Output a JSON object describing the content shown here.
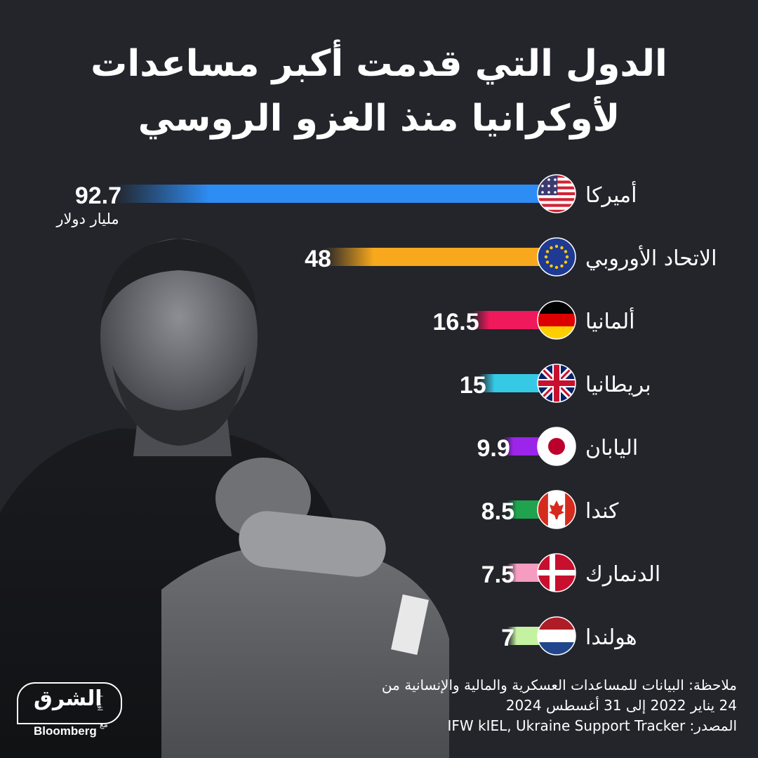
{
  "title_line1": "الدول التي قدمت أكبر مساعدات",
  "title_line2": "لأوكرانيا منذ الغزو الروسي",
  "unit_label": "مليار دولار",
  "chart_data": {
    "type": "bar",
    "orientation": "horizontal",
    "categories": [
      "أميركا",
      "الاتحاد الأوروبي",
      "ألمانيا",
      "بريطانيا",
      "اليابان",
      "كندا",
      "الدنمارك",
      "هولندا"
    ],
    "values": [
      92.7,
      48,
      16.5,
      15,
      9.9,
      8.5,
      7.5,
      7
    ],
    "value_labels": [
      "92.7",
      "48",
      "16.5",
      "15",
      "9.9",
      "8.5",
      "7.5",
      "7"
    ],
    "flags": [
      "usa-flag-icon",
      "eu-flag-icon",
      "germany-flag-icon",
      "uk-flag-icon",
      "japan-flag-icon",
      "canada-flag-icon",
      "denmark-flag-icon",
      "netherlands-flag-icon"
    ],
    "colors": [
      "#2e8df5",
      "#f8a81c",
      "#f0195c",
      "#36c9e6",
      "#9b25e8",
      "#1fa34f",
      "#f59cc0",
      "#c5f2a0"
    ],
    "unit": "مليار دولار"
  },
  "footnote": {
    "line1": "ملاحظة: البيانات للمساعدات العسكرية والمالية والإنسانية من",
    "line2": "24 يناير 2022 إلى 31 أغسطس 2024",
    "line3": "المصدر: IFW kIEL, Ukraine Support Tracker"
  },
  "logo": {
    "arabic": "الشرق",
    "sub": "اقتصاد",
    "with": "مع",
    "english": "Bloomberg"
  }
}
